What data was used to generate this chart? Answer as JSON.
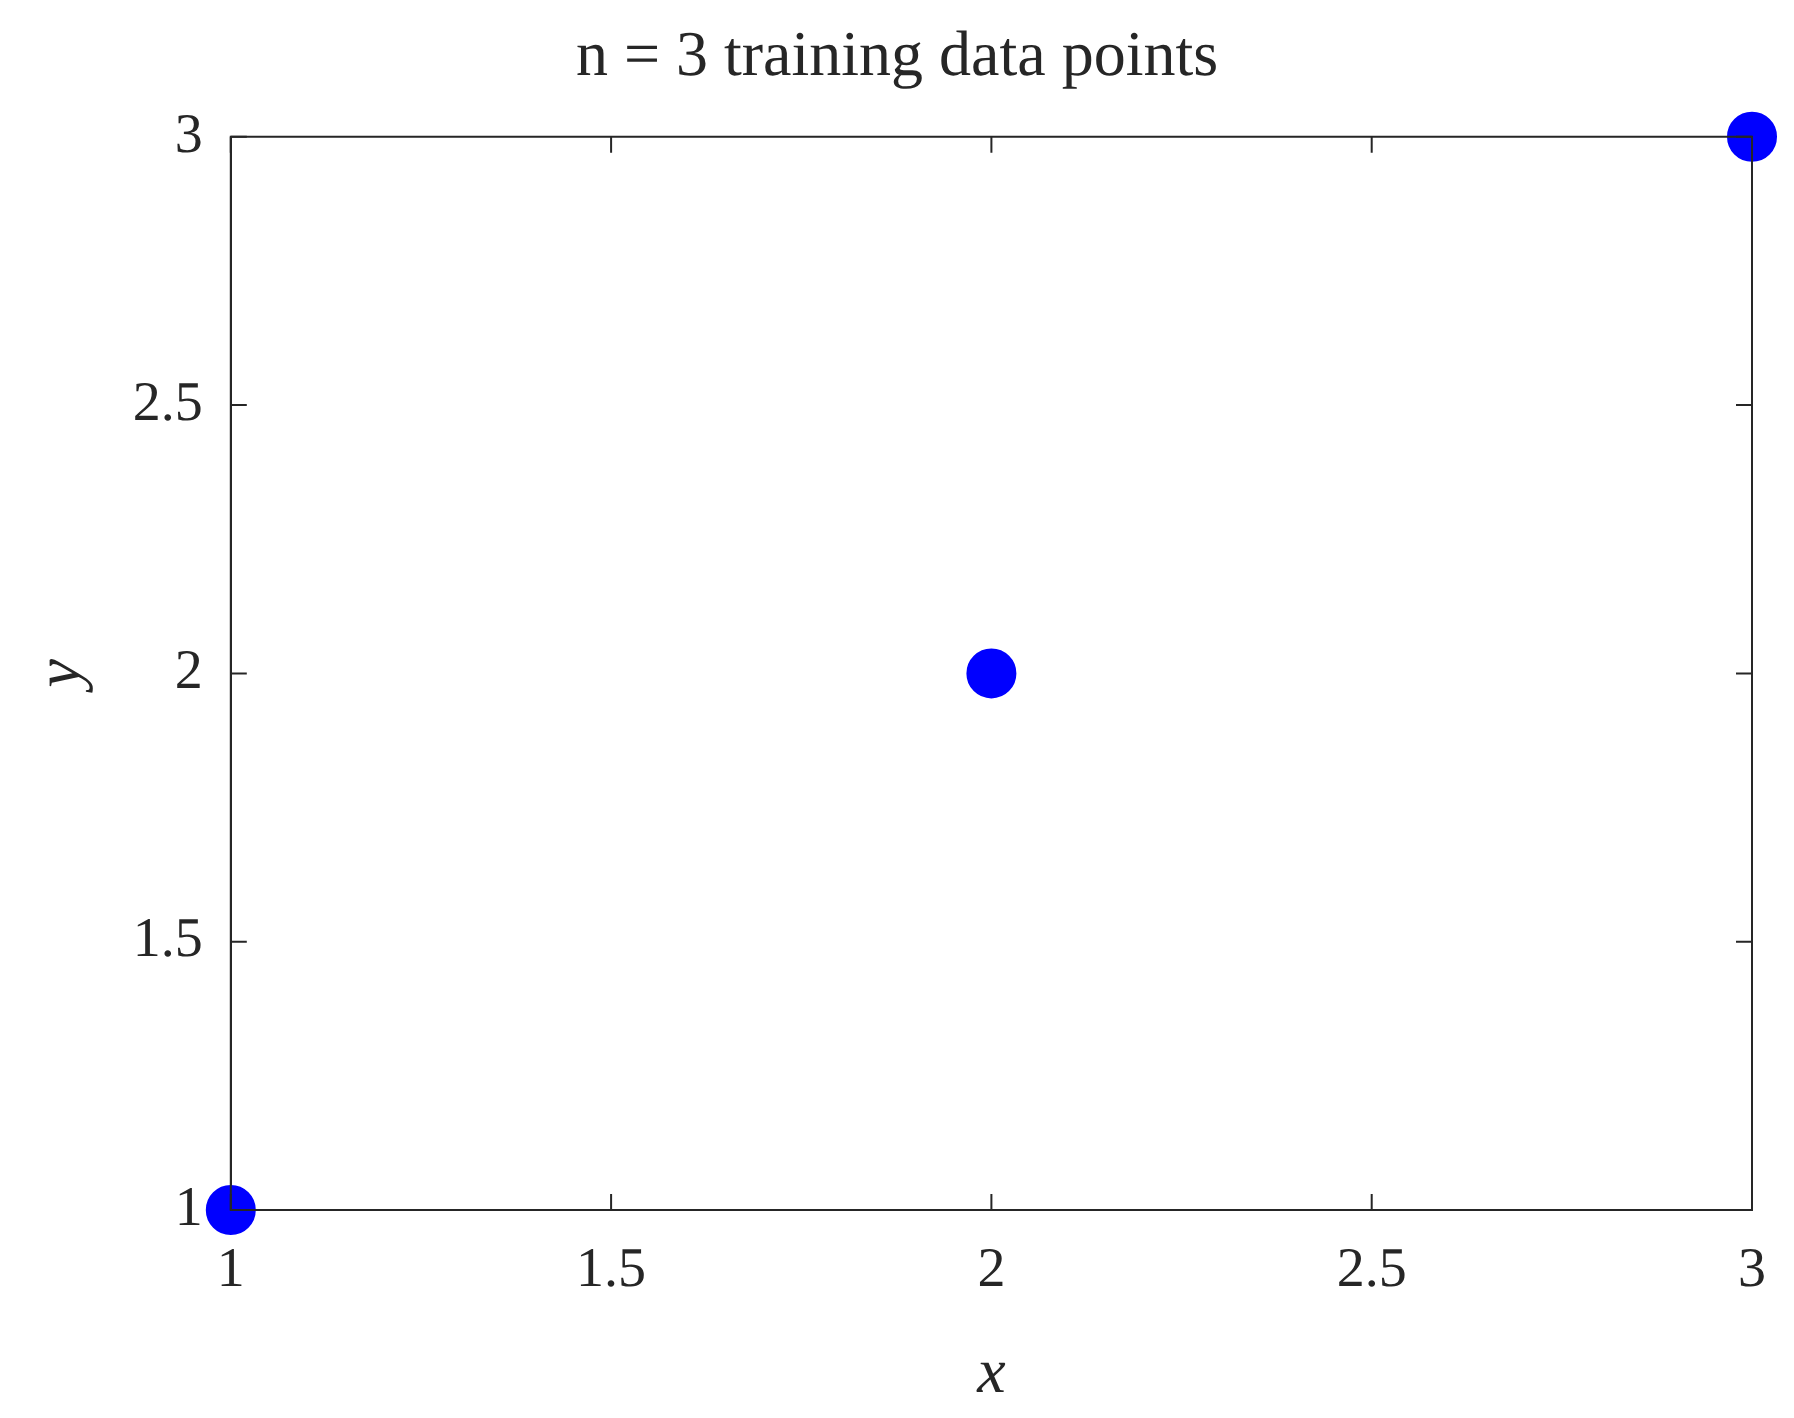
{
  "chart_data": {
    "type": "scatter",
    "title": "n = 3 training data points",
    "xlabel": "x",
    "ylabel": "y",
    "x": [
      1,
      2,
      3
    ],
    "series": [
      {
        "color": "#0000ff",
        "values": [
          1,
          2,
          3
        ]
      }
    ],
    "xlim": [
      1,
      3
    ],
    "xticks": [
      1,
      1.5,
      2,
      2.5,
      3
    ],
    "ylim": [
      1,
      3
    ],
    "yticks": [
      1,
      1.5,
      2,
      2.5,
      3
    ],
    "grid": false,
    "legend": false,
    "marker": "circle"
  }
}
